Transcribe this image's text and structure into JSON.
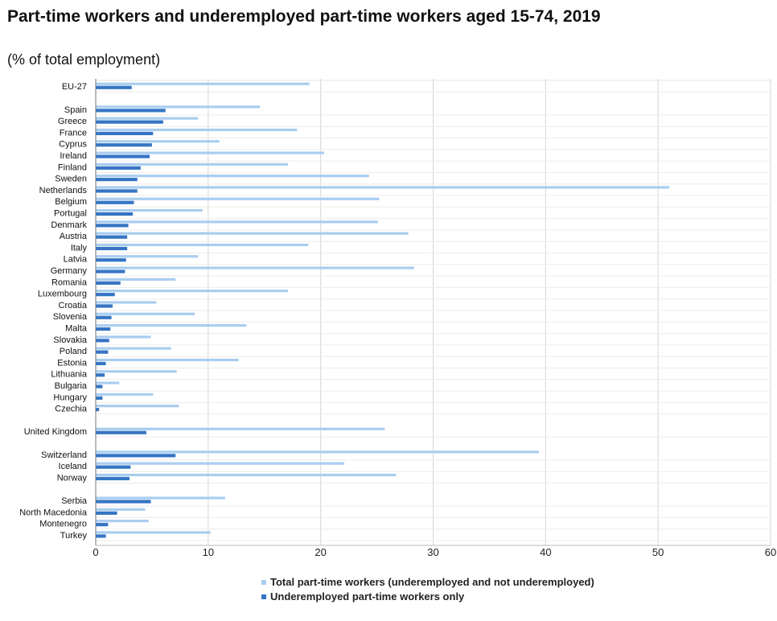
{
  "title": "Part-time workers and underemployed part-time workers aged 15-74, 2019",
  "subtitle": "(% of total employment)",
  "colors": {
    "total": "#a9cdf0",
    "underemployed": "#3575c4",
    "grid": "#d6d6d6",
    "axis": "#777777"
  },
  "legend": {
    "total": "Total part-time workers (underemployed and not underemployed)",
    "underemployed": "Underemployed part-time workers only"
  },
  "chart_data": {
    "type": "bar",
    "orientation": "horizontal",
    "title": "Part-time workers and underemployed part-time workers aged 15-74, 2019",
    "subtitle": "(% of total employment)",
    "xlim": [
      0,
      60
    ],
    "xticks": [
      0,
      10,
      20,
      30,
      40,
      50,
      60
    ],
    "grid": true,
    "legend_position": "bottom",
    "groups": [
      [
        "EU-27"
      ],
      [
        "Spain",
        "Greece",
        "France",
        "Cyprus",
        "Ireland",
        "Finland",
        "Sweden",
        "Netherlands",
        "Belgium",
        "Portugal",
        "Denmark",
        "Austria",
        "Italy",
        "Latvia",
        "Germany",
        "Romania",
        "Luxembourg",
        "Croatia",
        "Slovenia",
        "Malta",
        "Slovakia",
        "Poland",
        "Estonia",
        "Lithuania",
        "Bulgaria",
        "Hungary",
        "Czechia"
      ],
      [
        "United Kingdom"
      ],
      [
        "Switzerland",
        "Iceland",
        "Norway"
      ],
      [
        "Serbia",
        "North Macedonia",
        "Montenegro",
        "Turkey"
      ]
    ],
    "categories": [
      "EU-27",
      "Spain",
      "Greece",
      "France",
      "Cyprus",
      "Ireland",
      "Finland",
      "Sweden",
      "Netherlands",
      "Belgium",
      "Portugal",
      "Denmark",
      "Austria",
      "Italy",
      "Latvia",
      "Germany",
      "Romania",
      "Luxembourg",
      "Croatia",
      "Slovenia",
      "Malta",
      "Slovakia",
      "Poland",
      "Estonia",
      "Lithuania",
      "Bulgaria",
      "Hungary",
      "Czechia",
      "United Kingdom",
      "Switzerland",
      "Iceland",
      "Norway",
      "Serbia",
      "North Macedonia",
      "Montenegro",
      "Turkey"
    ],
    "series": [
      {
        "name": "Total part-time workers (underemployed and not underemployed)",
        "values": [
          19.0,
          14.6,
          9.1,
          17.9,
          11.0,
          20.3,
          17.1,
          24.3,
          51.0,
          25.2,
          9.5,
          25.1,
          27.8,
          18.9,
          9.1,
          28.3,
          7.1,
          17.1,
          5.4,
          8.8,
          13.4,
          4.9,
          6.7,
          12.7,
          7.2,
          2.1,
          5.1,
          7.4,
          25.7,
          39.4,
          22.1,
          26.7,
          11.5,
          4.4,
          4.7,
          10.2
        ]
      },
      {
        "name": "Underemployed part-time workers only",
        "values": [
          3.2,
          6.2,
          6.0,
          5.1,
          5.0,
          4.8,
          4.0,
          3.7,
          3.7,
          3.4,
          3.3,
          2.9,
          2.8,
          2.8,
          2.7,
          2.6,
          2.2,
          1.7,
          1.5,
          1.4,
          1.3,
          1.2,
          1.1,
          0.9,
          0.8,
          0.6,
          0.6,
          0.3,
          4.5,
          7.1,
          3.1,
          3.0,
          4.9,
          1.9,
          1.1,
          0.9
        ]
      }
    ]
  }
}
